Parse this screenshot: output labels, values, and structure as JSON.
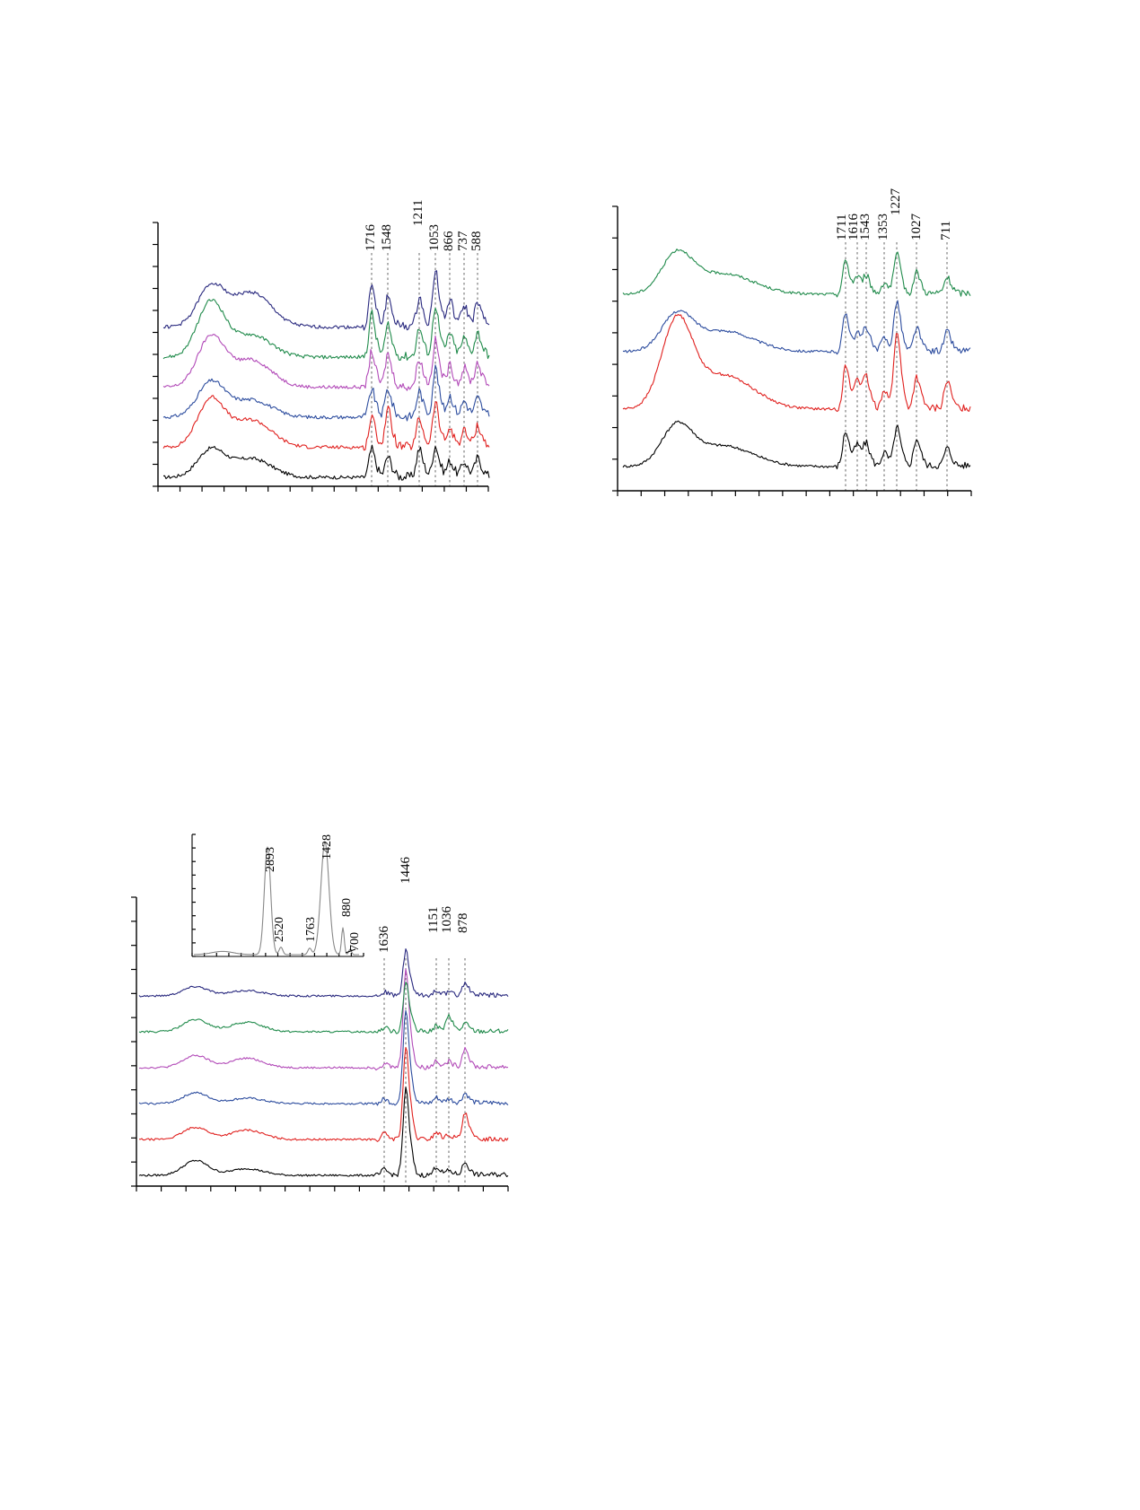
{
  "colors": {
    "black": "#000000",
    "red": "#e0201e",
    "blue": "#2c4c9e",
    "magenta": "#b24ab8",
    "green": "#1f8a4a",
    "navy": "#28287e",
    "gray": "#888888"
  },
  "chart_data": [
    {
      "id": "panel-a",
      "type": "line",
      "title": "",
      "xlabel": "",
      "ylabel": "",
      "x_axis_ticks": 15,
      "y_axis_ticks": 12,
      "grid": false,
      "peak_labels": [
        "1716",
        "1548",
        "1211",
        "1053",
        "866",
        "737",
        "588"
      ],
      "series": [
        {
          "color": "#000000",
          "offset": 0,
          "hump": [
            0.55,
            0.38
          ],
          "peaks": [
            0.55,
            0.4,
            0.55,
            0.6,
            0.3,
            0.28,
            0.35
          ]
        },
        {
          "color": "#e0201e",
          "offset": 1,
          "hump": [
            0.95,
            0.55
          ],
          "peaks": [
            0.6,
            0.75,
            0.55,
            0.85,
            0.35,
            0.3,
            0.4
          ]
        },
        {
          "color": "#2c4c9e",
          "offset": 2,
          "hump": [
            0.7,
            0.35
          ],
          "peaks": [
            0.55,
            0.55,
            0.5,
            0.95,
            0.4,
            0.3,
            0.35
          ]
        },
        {
          "color": "#b24ab8",
          "offset": 3,
          "hump": [
            1.0,
            0.55
          ],
          "peaks": [
            0.7,
            0.65,
            0.55,
            0.9,
            0.4,
            0.35,
            0.45
          ]
        },
        {
          "color": "#1f8a4a",
          "offset": 4,
          "hump": [
            1.1,
            0.45
          ],
          "peaks": [
            0.85,
            0.6,
            0.55,
            1.0,
            0.45,
            0.35,
            0.45
          ]
        },
        {
          "color": "#28287e",
          "offset": 5,
          "hump": [
            0.8,
            0.7
          ],
          "peaks": [
            0.8,
            0.6,
            0.55,
            1.1,
            0.5,
            0.4,
            0.45
          ]
        }
      ]
    },
    {
      "id": "panel-b",
      "type": "line",
      "title": "",
      "xlabel": "",
      "ylabel": "",
      "x_axis_ticks": 15,
      "y_axis_ticks": 9,
      "grid": false,
      "peak_labels": [
        "1711",
        "1616",
        "1543",
        "1353",
        "1227",
        "1027",
        "711"
      ],
      "series": [
        {
          "color": "#000000",
          "offset": 0,
          "hump": [
            1.0,
            0.55
          ],
          "peaks": [
            0.9,
            0.55,
            0.55,
            0.35,
            1.0,
            0.7,
            0.45
          ]
        },
        {
          "color": "#e0201e",
          "offset": 1,
          "hump": [
            2.2,
            0.9
          ],
          "peaks": [
            1.1,
            0.8,
            0.75,
            0.5,
            2.0,
            0.8,
            0.7
          ]
        },
        {
          "color": "#2c4c9e",
          "offset": 2,
          "hump": [
            0.9,
            0.55
          ],
          "peaks": [
            1.0,
            0.45,
            0.6,
            0.35,
            1.3,
            0.6,
            0.5
          ]
        },
        {
          "color": "#1f8a4a",
          "offset": 3,
          "hump": [
            1.0,
            0.55
          ],
          "peaks": [
            0.85,
            0.45,
            0.45,
            0.3,
            1.0,
            0.55,
            0.4
          ]
        }
      ]
    },
    {
      "id": "panel-c",
      "type": "line",
      "title": "",
      "xlabel": "",
      "ylabel": "",
      "x_axis_ticks": 15,
      "y_axis_ticks": 12,
      "grid": false,
      "peak_labels": [
        "1636",
        "1446",
        "1151",
        "1036",
        "878"
      ],
      "series": [
        {
          "color": "#000000",
          "offset": 0,
          "hump": [
            0.55,
            0.25
          ],
          "peaks": [
            0.2,
            3.1,
            0.3,
            0.15,
            0.45
          ]
        },
        {
          "color": "#e0201e",
          "offset": 1,
          "hump": [
            0.45,
            0.35
          ],
          "peaks": [
            0.2,
            3.3,
            0.25,
            0.15,
            0.9
          ]
        },
        {
          "color": "#2c4c9e",
          "offset": 2,
          "hump": [
            0.4,
            0.2
          ],
          "peaks": [
            0.15,
            3.4,
            0.2,
            0.15,
            0.35
          ]
        },
        {
          "color": "#b24ab8",
          "offset": 3,
          "hump": [
            0.45,
            0.35
          ],
          "peaks": [
            0.15,
            3.5,
            0.25,
            0.2,
            0.7
          ]
        },
        {
          "color": "#1f8a4a",
          "offset": 4,
          "hump": [
            0.45,
            0.35
          ],
          "peaks": [
            0.15,
            1.8,
            0.2,
            0.55,
            0.3
          ]
        },
        {
          "color": "#28287e",
          "offset": 5,
          "hump": [
            0.35,
            0.2
          ],
          "peaks": [
            0.15,
            1.6,
            0.2,
            0.1,
            0.45
          ]
        }
      ],
      "inset": {
        "type": "line",
        "peak_labels": [
          "2893",
          "2520",
          "1763",
          "1428",
          "880",
          "700"
        ],
        "peaks": [
          1.0,
          0.07,
          0.06,
          1.05,
          0.25,
          0.05
        ]
      }
    }
  ]
}
